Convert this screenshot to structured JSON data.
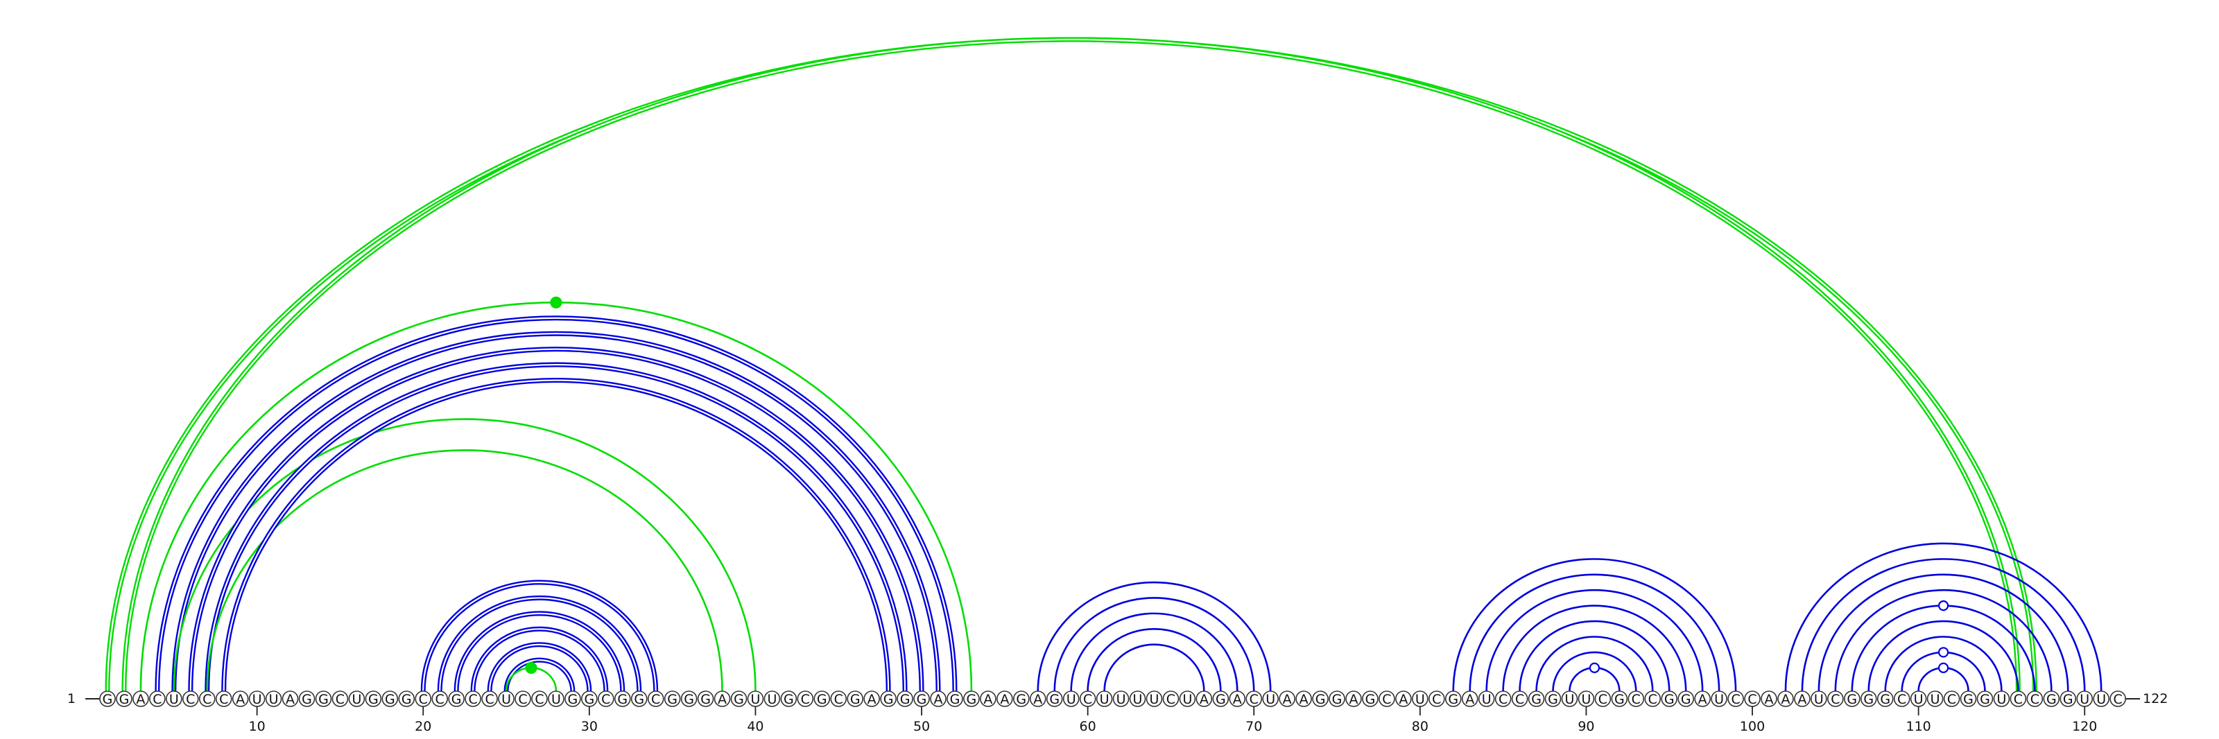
{
  "sequence": "GGACUCCCAUUAGGCUGGGCCGCCUCCUGGCGGCGGGAGUUGCGCGAGGGAGGAAGAGUCUUUUCUAGACUAAGGAGCAUCGAUCCGGUUCGCCGGAUCCAAAUCGGGCUUCGGUCCGGUUC",
  "start_label": "1",
  "end_label": "122",
  "ticks": [
    10,
    20,
    30,
    40,
    50,
    60,
    70,
    80,
    90,
    100,
    110,
    120
  ],
  "colors": {
    "background": "#ffffff",
    "structure_pairs": "#0000dd",
    "alternate_pairs": "#00dd00",
    "nucleotide_ring": "#333333",
    "nucleotide_fill": "#ffffff",
    "text": "#111111"
  },
  "pairs": [
    {
      "i": 1,
      "j": 117,
      "color": "green",
      "double": true
    },
    {
      "i": 2,
      "j": 116,
      "color": "green",
      "double": true
    },
    {
      "i": 3,
      "j": 53,
      "color": "green",
      "marker": "filled"
    },
    {
      "i": 4,
      "j": 52,
      "color": "blue",
      "double": true
    },
    {
      "i": 5,
      "j": 51,
      "color": "blue",
      "double": true
    },
    {
      "i": 5,
      "j": 40,
      "color": "green"
    },
    {
      "i": 6,
      "j": 50,
      "color": "blue",
      "double": true
    },
    {
      "i": 7,
      "j": 49,
      "color": "blue",
      "double": true
    },
    {
      "i": 7,
      "j": 38,
      "color": "green"
    },
    {
      "i": 8,
      "j": 48,
      "color": "blue",
      "double": true
    },
    {
      "i": 20,
      "j": 34,
      "color": "blue",
      "double": true
    },
    {
      "i": 21,
      "j": 33,
      "color": "blue",
      "double": true
    },
    {
      "i": 22,
      "j": 32,
      "color": "blue",
      "double": true
    },
    {
      "i": 23,
      "j": 31,
      "color": "blue",
      "double": true
    },
    {
      "i": 24,
      "j": 30,
      "color": "blue",
      "double": true
    },
    {
      "i": 25,
      "j": 29,
      "color": "blue",
      "double": true
    },
    {
      "i": 25,
      "j": 28,
      "color": "green",
      "marker": "filled"
    },
    {
      "i": 57,
      "j": 71,
      "color": "blue"
    },
    {
      "i": 58,
      "j": 70,
      "color": "blue"
    },
    {
      "i": 59,
      "j": 69,
      "color": "blue"
    },
    {
      "i": 60,
      "j": 68,
      "color": "blue"
    },
    {
      "i": 61,
      "j": 67,
      "color": "blue"
    },
    {
      "i": 82,
      "j": 99,
      "color": "blue"
    },
    {
      "i": 83,
      "j": 98,
      "color": "blue"
    },
    {
      "i": 84,
      "j": 97,
      "color": "blue"
    },
    {
      "i": 85,
      "j": 96,
      "color": "blue"
    },
    {
      "i": 86,
      "j": 95,
      "color": "blue"
    },
    {
      "i": 87,
      "j": 94,
      "color": "blue"
    },
    {
      "i": 88,
      "j": 93,
      "color": "blue"
    },
    {
      "i": 89,
      "j": 92,
      "color": "blue",
      "marker": "open"
    },
    {
      "i": 102,
      "j": 121,
      "color": "blue"
    },
    {
      "i": 103,
      "j": 120,
      "color": "blue"
    },
    {
      "i": 104,
      "j": 119,
      "color": "blue"
    },
    {
      "i": 105,
      "j": 118,
      "color": "blue"
    },
    {
      "i": 106,
      "j": 117,
      "color": "blue",
      "marker": "open"
    },
    {
      "i": 107,
      "j": 116,
      "color": "blue"
    },
    {
      "i": 108,
      "j": 115,
      "color": "blue"
    },
    {
      "i": 109,
      "j": 114,
      "color": "blue",
      "marker": "open"
    },
    {
      "i": 110,
      "j": 113,
      "color": "blue",
      "marker": "open"
    }
  ]
}
